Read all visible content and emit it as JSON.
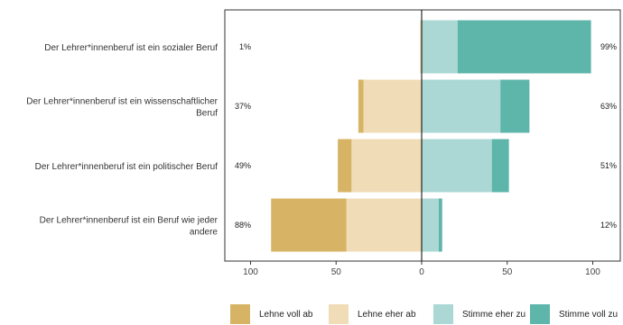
{
  "chart_data": {
    "type": "bar",
    "orientation": "horizontal",
    "stacking": "diverging",
    "categories": [
      [
        "Der Lehrer*innenberuf ist ein sozialer Beruf"
      ],
      [
        "Der Lehrer*innenberuf ist ein wissenschaftlicher",
        "Beruf"
      ],
      [
        "Der Lehrer*innenberuf ist ein politischer Beruf"
      ],
      [
        "Der Lehrer*innenberuf ist ein Beruf wie jeder",
        "andere"
      ]
    ],
    "series": [
      {
        "name": "Lehne voll ab",
        "color": "#d7b465",
        "side": "negative",
        "values": [
          0,
          3,
          8,
          44
        ]
      },
      {
        "name": "Lehne eher ab",
        "color": "#f0dcb6",
        "side": "negative",
        "values": [
          1,
          34,
          41,
          44
        ]
      },
      {
        "name": "Stimme eher zu",
        "color": "#abd8d4",
        "side": "positive",
        "values": [
          21,
          46,
          41,
          10
        ]
      },
      {
        "name": "Stimme voll zu",
        "color": "#5eb5aa",
        "side": "positive",
        "values": [
          78,
          17,
          10,
          2
        ]
      }
    ],
    "left_totals": [
      "1%",
      "37%",
      "49%",
      "88%"
    ],
    "right_totals": [
      "99%",
      "63%",
      "51%",
      "12%"
    ],
    "xlim": [
      -100,
      100
    ],
    "xticks": [
      -100,
      -50,
      0,
      50,
      100
    ],
    "xtick_labels": [
      "100",
      "50",
      "0",
      "50",
      "100"
    ],
    "grid": false,
    "legend_position": "bottom"
  }
}
